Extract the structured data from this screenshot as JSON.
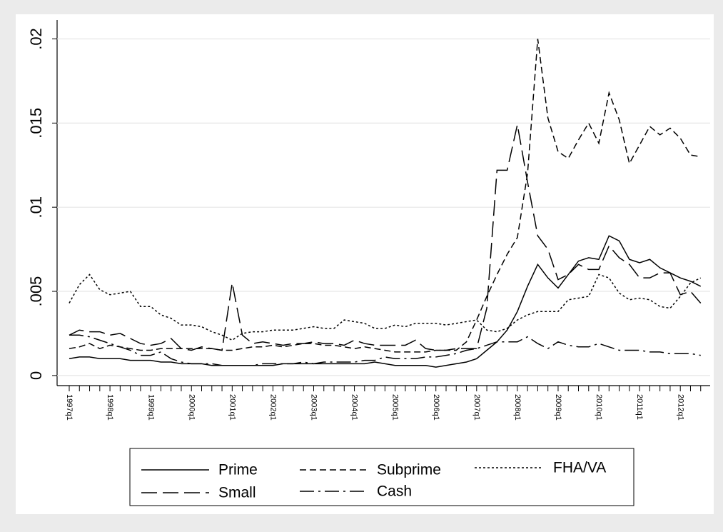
{
  "chart_data": {
    "type": "line",
    "categories": [
      "1997q1",
      null,
      null,
      null,
      "1998q1",
      null,
      null,
      null,
      "1999q1",
      null,
      null,
      null,
      "2000q1",
      null,
      null,
      null,
      "2001q1",
      null,
      null,
      null,
      "2002q1",
      null,
      null,
      null,
      "2003q1",
      null,
      null,
      null,
      "2004q1",
      null,
      null,
      null,
      "2005q1",
      null,
      null,
      null,
      "2006q1",
      null,
      null,
      null,
      "2007q1",
      null,
      null,
      null,
      "2008q1",
      null,
      null,
      null,
      "2009q1",
      null,
      null,
      null,
      "2010q1",
      null,
      null,
      null,
      "2011q1",
      null,
      null,
      null,
      "2012q1",
      null,
      null
    ],
    "series": [
      {
        "name": "Prime",
        "color": "#000000",
        "dash": "solid",
        "values": [
          0.001,
          0.0011,
          0.0011,
          0.001,
          0.001,
          0.001,
          0.0009,
          0.0009,
          0.0009,
          0.0008,
          0.0008,
          0.0007,
          0.0007,
          0.0007,
          0.0006,
          0.0006,
          0.0006,
          0.0006,
          0.0006,
          0.0006,
          0.0006,
          0.0007,
          0.0007,
          0.0007,
          0.0007,
          0.0007,
          0.0007,
          0.0007,
          0.0007,
          0.0007,
          0.0008,
          0.0007,
          0.0006,
          0.0006,
          0.0006,
          0.0006,
          0.0005,
          0.0006,
          0.0007,
          0.0008,
          0.001,
          0.0015,
          0.002,
          0.0027,
          0.0038,
          0.0053,
          0.0066,
          0.0058,
          0.0052,
          0.006,
          0.0068,
          0.007,
          0.0069,
          0.0083,
          0.008,
          0.0069,
          0.0067,
          0.0069,
          0.0064,
          0.0061,
          0.0058,
          0.0056,
          0.0053
        ]
      },
      {
        "name": "Subprime",
        "color": "#000000",
        "dash": "dash",
        "values": [
          0.0016,
          0.0017,
          0.0019,
          0.0016,
          0.0018,
          0.0017,
          0.0016,
          0.0015,
          0.0015,
          0.0016,
          0.0016,
          0.0016,
          0.0016,
          0.0016,
          0.0016,
          0.0015,
          0.0015,
          0.0016,
          0.0017,
          0.0017,
          0.0018,
          0.0017,
          0.0018,
          0.0019,
          0.0019,
          0.0018,
          0.0018,
          0.0017,
          0.0016,
          0.0017,
          0.0016,
          0.0015,
          0.0014,
          0.0014,
          0.0014,
          0.0014,
          0.0015,
          0.0015,
          0.0015,
          0.002,
          0.0033,
          0.0047,
          0.006,
          0.0072,
          0.0082,
          0.012,
          0.02,
          0.0153,
          0.0133,
          0.0129,
          0.014,
          0.015,
          0.0138,
          0.0168,
          0.0152,
          0.0126,
          0.0137,
          0.0148,
          0.0143,
          0.0147,
          0.0141,
          0.0131,
          0.013
        ]
      },
      {
        "name": "FHA/VA",
        "color": "#000000",
        "dash": "dot",
        "values": [
          0.0043,
          0.0054,
          0.006,
          0.0051,
          0.0048,
          0.0049,
          0.005,
          0.0041,
          0.0041,
          0.0036,
          0.0034,
          0.003,
          0.003,
          0.0029,
          0.0026,
          0.0024,
          0.0021,
          0.0025,
          0.0026,
          0.0026,
          0.0027,
          0.0027,
          0.0027,
          0.0028,
          0.0029,
          0.0028,
          0.0028,
          0.0033,
          0.0032,
          0.0031,
          0.0028,
          0.0028,
          0.003,
          0.0029,
          0.0031,
          0.0031,
          0.0031,
          0.003,
          0.0031,
          0.0032,
          0.0033,
          0.0027,
          0.0026,
          0.0028,
          0.0033,
          0.0036,
          0.0038,
          0.0038,
          0.0038,
          0.0045,
          0.0046,
          0.0047,
          0.006,
          0.0058,
          0.0049,
          0.0045,
          0.0046,
          0.0045,
          0.0041,
          0.004,
          0.0047,
          0.0055,
          0.0058
        ]
      },
      {
        "name": "Small",
        "color": "#000000",
        "dash": "longdash",
        "values": [
          0.0024,
          0.0027,
          0.0026,
          0.0026,
          0.0024,
          0.0025,
          0.0022,
          0.0019,
          0.0018,
          0.0019,
          0.0022,
          0.0016,
          0.0015,
          0.0017,
          0.0016,
          0.0015,
          0.0055,
          0.0024,
          0.0019,
          0.002,
          0.0019,
          0.0018,
          0.0019,
          0.0019,
          0.002,
          0.0019,
          0.0019,
          0.0018,
          0.0021,
          0.0019,
          0.0018,
          0.0018,
          0.0018,
          0.0018,
          0.0021,
          0.0016,
          0.0015,
          0.0015,
          0.0016,
          0.0016,
          0.0016,
          0.004,
          0.0122,
          0.0122,
          0.0149,
          0.0115,
          0.0083,
          0.0075,
          0.0057,
          0.006,
          0.0066,
          0.0063,
          0.0063,
          0.0077,
          0.007,
          0.0066,
          0.0058,
          0.0058,
          0.0061,
          0.0061,
          0.0048,
          0.005,
          0.0043
        ]
      },
      {
        "name": "Cash",
        "color": "#000000",
        "dash": "dashdot",
        "values": [
          0.0024,
          0.0024,
          0.0023,
          0.0021,
          0.0019,
          0.0017,
          0.0015,
          0.0012,
          0.0012,
          0.0014,
          0.001,
          0.0008,
          0.0007,
          0.0007,
          0.0007,
          0.0006,
          0.0006,
          0.0006,
          0.0006,
          0.0007,
          0.0007,
          0.0007,
          0.0007,
          0.0008,
          0.0007,
          0.0008,
          0.0008,
          0.0008,
          0.0008,
          0.0009,
          0.0009,
          0.0011,
          0.001,
          0.001,
          0.001,
          0.0011,
          0.0011,
          0.0012,
          0.0013,
          0.0015,
          0.0016,
          0.0018,
          0.002,
          0.002,
          0.002,
          0.0023,
          0.0019,
          0.0016,
          0.002,
          0.0018,
          0.0017,
          0.0017,
          0.0019,
          0.0017,
          0.0015,
          0.0015,
          0.0015,
          0.0014,
          0.0014,
          0.0013,
          0.0013,
          0.0013,
          0.0012
        ]
      }
    ],
    "ylim": [
      -0.0006,
      0.0207
    ],
    "yticks": [
      0,
      {
        "value": 0.005,
        "label": ".005"
      },
      {
        "value": 0.01,
        "label": ".01"
      },
      {
        "value": 0.015,
        "label": ".015"
      },
      {
        "value": 0.02,
        "label": ".02"
      }
    ],
    "grid": true,
    "legend": "bottom"
  }
}
